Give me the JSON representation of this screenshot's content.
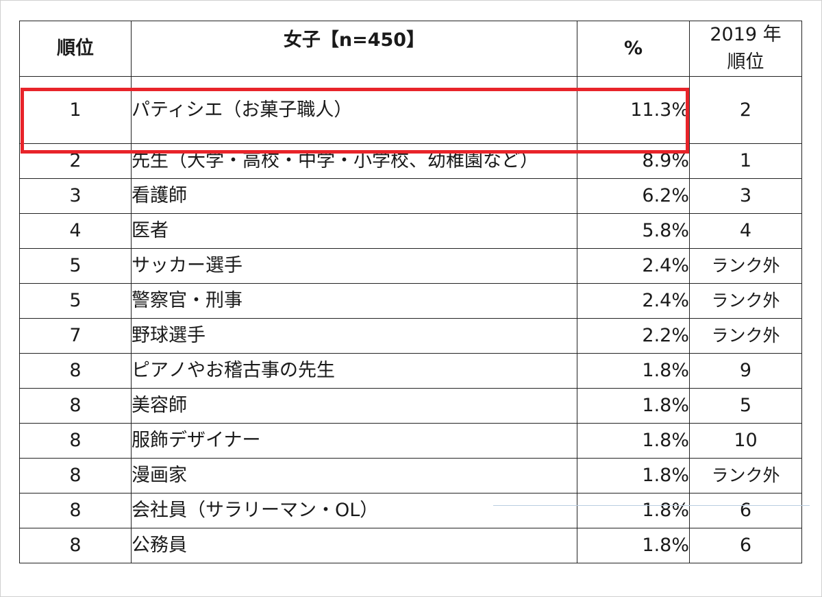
{
  "header": {
    "rank": "順位",
    "job": "女子【n=450】",
    "pct": "%",
    "prev_line1": "2019 年",
    "prev_line2": "順位"
  },
  "rows": [
    {
      "rank": "1",
      "job": "パティシエ（お菓子職人）",
      "pct": "11.3%",
      "prev": "2"
    },
    {
      "rank": "2",
      "job": "先生（大学・高校・中学・小学校、幼稚園など）",
      "pct": "8.9%",
      "prev": "1"
    },
    {
      "rank": "3",
      "job": "看護師",
      "pct": "6.2%",
      "prev": "3"
    },
    {
      "rank": "4",
      "job": "医者",
      "pct": "5.8%",
      "prev": "4"
    },
    {
      "rank": "5",
      "job": "サッカー選手",
      "pct": "2.4%",
      "prev": "ランク外"
    },
    {
      "rank": "5",
      "job": "警察官・刑事",
      "pct": "2.4%",
      "prev": "ランク外"
    },
    {
      "rank": "7",
      "job": "野球選手",
      "pct": "2.2%",
      "prev": "ランク外"
    },
    {
      "rank": "8",
      "job": "ピアノやお稽古事の先生",
      "pct": "1.8%",
      "prev": "9"
    },
    {
      "rank": "8",
      "job": "美容師",
      "pct": "1.8%",
      "prev": "5"
    },
    {
      "rank": "8",
      "job": "服飾デザイナー",
      "pct": "1.8%",
      "prev": "10"
    },
    {
      "rank": "8",
      "job": "漫画家",
      "pct": "1.8%",
      "prev": "ランク外"
    },
    {
      "rank": "8",
      "job": "会社員（サラリーマン・OL）",
      "pct": "1.8%",
      "prev": "6"
    },
    {
      "rank": "8",
      "job": "公務員",
      "pct": "1.8%",
      "prev": "6"
    }
  ],
  "colors": {
    "highlight": "#e8242a",
    "border": "#222222"
  }
}
